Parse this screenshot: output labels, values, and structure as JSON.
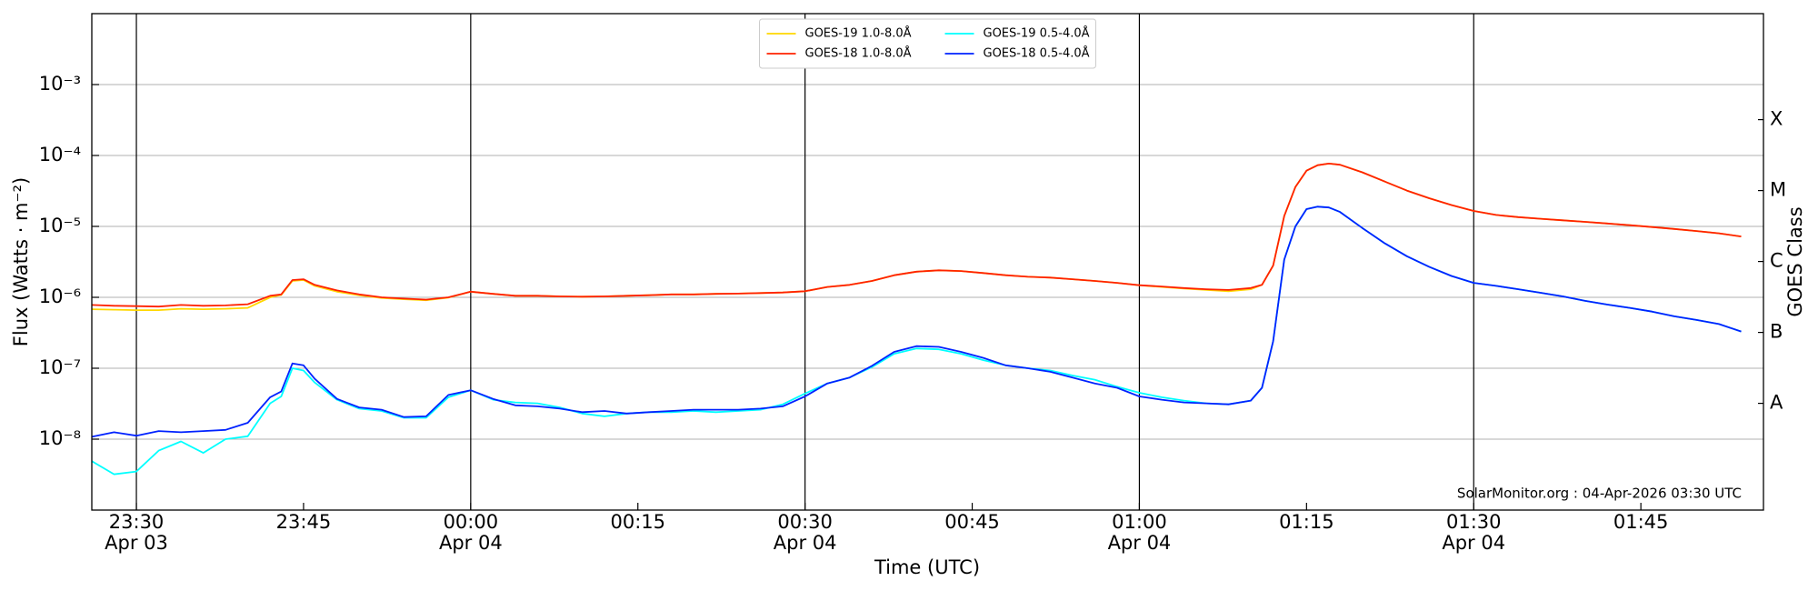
{
  "chart_data": {
    "type": "line",
    "xlabel": "Time (UTC)",
    "ylabel": "Flux (Watts · m⁻²)",
    "y2label": "GOES Class",
    "annotation": "SolarMonitor.org : 04-Apr-2026 03:30 UTC",
    "yscale": "log",
    "grid": true,
    "legend": "upper center",
    "xlim": [
      "Apr 03 23:26",
      "Apr 04 01:56"
    ],
    "xticks": [
      {
        "value": "Apr 03 23:30",
        "label": "23:30\nApr 03"
      },
      {
        "value": "Apr 03 23:45",
        "label": "23:45"
      },
      {
        "value": "Apr 04 00:00",
        "label": "00:00\nApr 04"
      },
      {
        "value": "Apr 04 00:15",
        "label": "00:15"
      },
      {
        "value": "Apr 04 00:30",
        "label": "00:30\nApr 04"
      },
      {
        "value": "Apr 04 00:45",
        "label": "00:45"
      },
      {
        "value": "Apr 04 01:00",
        "label": "01:00\nApr 04"
      },
      {
        "value": "Apr 04 01:15",
        "label": "01:15"
      },
      {
        "value": "Apr 04 01:30",
        "label": "01:30\nApr 04"
      },
      {
        "value": "Apr 04 01:45",
        "label": "01:45"
      }
    ],
    "ylim": [
      1e-09,
      0.01
    ],
    "yticks": [
      {
        "value": 1e-08,
        "label": "10⁻⁸"
      },
      {
        "value": 1e-07,
        "label": "10⁻⁷"
      },
      {
        "value": 1e-06,
        "label": "10⁻⁶"
      },
      {
        "value": 1e-05,
        "label": "10⁻⁵"
      },
      {
        "value": 0.0001,
        "label": "10⁻⁴"
      },
      {
        "value": 0.001,
        "label": "10⁻³"
      }
    ],
    "y2lim": [
      1e-09,
      0.01
    ],
    "y2ticks": [
      {
        "value": 3.2e-08,
        "label": "A"
      },
      {
        "value": 3.2e-07,
        "label": "B"
      },
      {
        "value": 3.2e-06,
        "label": "C"
      },
      {
        "value": 3.2e-05,
        "label": "M"
      },
      {
        "value": 0.00032,
        "label": "X"
      }
    ],
    "x": [
      "Apr 03 23:26",
      "Apr 03 23:28",
      "Apr 03 23:30",
      "Apr 03 23:32",
      "Apr 03 23:34",
      "Apr 03 23:36",
      "Apr 03 23:38",
      "Apr 03 23:40",
      "Apr 03 23:42",
      "Apr 03 23:43",
      "Apr 03 23:44",
      "Apr 03 23:45",
      "Apr 03 23:46",
      "Apr 03 23:48",
      "Apr 03 23:50",
      "Apr 03 23:52",
      "Apr 03 23:54",
      "Apr 03 23:56",
      "Apr 03 23:58",
      "Apr 04 00:00",
      "Apr 04 00:02",
      "Apr 04 00:04",
      "Apr 04 00:06",
      "Apr 04 00:08",
      "Apr 04 00:10",
      "Apr 04 00:12",
      "Apr 04 00:14",
      "Apr 04 00:16",
      "Apr 04 00:18",
      "Apr 04 00:20",
      "Apr 04 00:22",
      "Apr 04 00:24",
      "Apr 04 00:26",
      "Apr 04 00:28",
      "Apr 04 00:30",
      "Apr 04 00:32",
      "Apr 04 00:34",
      "Apr 04 00:36",
      "Apr 04 00:38",
      "Apr 04 00:40",
      "Apr 04 00:42",
      "Apr 04 00:44",
      "Apr 04 00:46",
      "Apr 04 00:48",
      "Apr 04 00:50",
      "Apr 04 00:52",
      "Apr 04 00:54",
      "Apr 04 00:56",
      "Apr 04 00:58",
      "Apr 04 01:00",
      "Apr 04 01:02",
      "Apr 04 01:04",
      "Apr 04 01:06",
      "Apr 04 01:08",
      "Apr 04 01:10",
      "Apr 04 01:11",
      "Apr 04 01:12",
      "Apr 04 01:13",
      "Apr 04 01:14",
      "Apr 04 01:15",
      "Apr 04 01:16",
      "Apr 04 01:17",
      "Apr 04 01:18",
      "Apr 04 01:20",
      "Apr 04 01:22",
      "Apr 04 01:24",
      "Apr 04 01:26",
      "Apr 04 01:28",
      "Apr 04 01:30",
      "Apr 04 01:32",
      "Apr 04 01:34",
      "Apr 04 01:36",
      "Apr 04 01:38",
      "Apr 04 01:40",
      "Apr 04 01:42",
      "Apr 04 01:44",
      "Apr 04 01:46",
      "Apr 04 01:48",
      "Apr 04 01:50",
      "Apr 04 01:52",
      "Apr 04 01:54"
    ],
    "series": [
      {
        "name": "GOES-19 1.0-8.0Å",
        "color": "#ffd700",
        "values": [
          6.8e-07,
          6.7e-07,
          6.6e-07,
          6.6e-07,
          6.9e-07,
          6.8e-07,
          6.9e-07,
          7.1e-07,
          1e-06,
          1.08e-06,
          1.7e-06,
          1.75e-06,
          1.45e-06,
          1.2e-06,
          1.07e-06,
          9.8e-07,
          9.4e-07,
          9.1e-07,
          9.9e-07,
          1.2e-06,
          1.12e-06,
          1.05e-06,
          1.05e-06,
          1.03e-06,
          1.02e-06,
          1.03e-06,
          1.05e-06,
          1.07e-06,
          1.1e-06,
          1.1e-06,
          1.12e-06,
          1.13e-06,
          1.15e-06,
          1.17e-06,
          1.22e-06,
          1.4e-06,
          1.5e-06,
          1.7e-06,
          2.05e-06,
          2.3e-06,
          2.4e-06,
          2.35e-06,
          2.2e-06,
          2.05e-06,
          1.95e-06,
          1.9e-06,
          1.8e-06,
          1.7e-06,
          1.6e-06,
          1.48e-06,
          1.4e-06,
          1.33e-06,
          1.27e-06,
          1.22e-06,
          1.3e-06,
          1.5e-06,
          2.8e-06,
          1.4e-05,
          3.6e-05,
          6.1e-05,
          7.3e-05,
          7.7e-05,
          7.4e-05,
          5.8e-05,
          4.3e-05,
          3.2e-05,
          2.5e-05,
          2e-05,
          1.65e-05,
          1.45e-05,
          1.35e-05,
          1.28e-05,
          1.22e-05,
          1.16e-05,
          1.1e-05,
          1.04e-05,
          9.8e-06,
          9.2e-06,
          8.6e-06,
          8e-06,
          7.2e-06
        ]
      },
      {
        "name": "GOES-18 1.0-8.0Å",
        "color": "#ff2200",
        "values": [
          7.8e-07,
          7.6e-07,
          7.5e-07,
          7.4e-07,
          7.8e-07,
          7.6e-07,
          7.7e-07,
          8e-07,
          1.05e-06,
          1.1e-06,
          1.75e-06,
          1.8e-06,
          1.5e-06,
          1.25e-06,
          1.1e-06,
          1e-06,
          9.6e-07,
          9.3e-07,
          1e-06,
          1.2e-06,
          1.12e-06,
          1.05e-06,
          1.05e-06,
          1.03e-06,
          1.02e-06,
          1.03e-06,
          1.05e-06,
          1.07e-06,
          1.1e-06,
          1.1e-06,
          1.12e-06,
          1.13e-06,
          1.15e-06,
          1.17e-06,
          1.22e-06,
          1.4e-06,
          1.5e-06,
          1.7e-06,
          2.05e-06,
          2.3e-06,
          2.4e-06,
          2.35e-06,
          2.2e-06,
          2.05e-06,
          1.95e-06,
          1.9e-06,
          1.8e-06,
          1.7e-06,
          1.6e-06,
          1.48e-06,
          1.42e-06,
          1.35e-06,
          1.3e-06,
          1.27e-06,
          1.35e-06,
          1.5e-06,
          2.8e-06,
          1.4e-05,
          3.6e-05,
          6.1e-05,
          7.3e-05,
          7.7e-05,
          7.4e-05,
          5.8e-05,
          4.3e-05,
          3.2e-05,
          2.5e-05,
          2e-05,
          1.65e-05,
          1.45e-05,
          1.35e-05,
          1.28e-05,
          1.22e-05,
          1.16e-05,
          1.1e-05,
          1.04e-05,
          9.8e-06,
          9.2e-06,
          8.6e-06,
          8e-06,
          7.2e-06
        ]
      },
      {
        "name": "GOES-19 0.5-4.0Å",
        "color": "#00ffff",
        "values": [
          4.9e-09,
          3.2e-09,
          3.5e-09,
          6.9e-09,
          9.3e-09,
          6.4e-09,
          1e-08,
          1.1e-08,
          3.2e-08,
          4e-08,
          1e-07,
          9.3e-08,
          6.3e-08,
          3.6e-08,
          2.7e-08,
          2.5e-08,
          2e-08,
          2e-08,
          3.9e-08,
          4.9e-08,
          3.6e-08,
          3.3e-08,
          3.2e-08,
          2.8e-08,
          2.3e-08,
          2.1e-08,
          2.3e-08,
          2.4e-08,
          2.4e-08,
          2.5e-08,
          2.4e-08,
          2.5e-08,
          2.6e-08,
          3.1e-08,
          4.4e-08,
          6.1e-08,
          7.4e-08,
          1.04e-07,
          1.6e-07,
          1.9e-07,
          1.85e-07,
          1.6e-07,
          1.3e-07,
          1.1e-07,
          1e-07,
          9.3e-08,
          7.9e-08,
          6.9e-08,
          5.5e-08,
          4.5e-08,
          3.9e-08,
          3.5e-08,
          3.2e-08,
          3.1e-08,
          3.5e-08,
          5.3e-08,
          2.4e-07,
          3.4e-06,
          1e-05,
          1.75e-05,
          1.9e-05,
          1.85e-05,
          1.6e-05,
          9.5e-06,
          5.8e-06,
          3.8e-06,
          2.7e-06,
          2e-06,
          1.6e-06,
          1.45e-06,
          1.3e-06,
          1.16e-06,
          1.03e-06,
          8.9e-07,
          7.9e-07,
          7.1e-07,
          6.3e-07,
          5.4e-07,
          4.8e-07,
          4.2e-07,
          3.3e-07
        ]
      },
      {
        "name": "GOES-18 0.5-4.0Å",
        "color": "#0022ff",
        "values": [
          1.08e-08,
          1.25e-08,
          1.12e-08,
          1.3e-08,
          1.25e-08,
          1.3e-08,
          1.35e-08,
          1.7e-08,
          3.9e-08,
          4.7e-08,
          1.17e-07,
          1.1e-07,
          7.1e-08,
          3.7e-08,
          2.8e-08,
          2.6e-08,
          2.05e-08,
          2.1e-08,
          4.2e-08,
          4.9e-08,
          3.7e-08,
          3e-08,
          2.9e-08,
          2.7e-08,
          2.4e-08,
          2.5e-08,
          2.3e-08,
          2.4e-08,
          2.5e-08,
          2.6e-08,
          2.6e-08,
          2.6e-08,
          2.7e-08,
          2.9e-08,
          4e-08,
          6.1e-08,
          7.4e-08,
          1.08e-07,
          1.7e-07,
          2.05e-07,
          2e-07,
          1.7e-07,
          1.4e-07,
          1.1e-07,
          1e-07,
          8.9e-08,
          7.4e-08,
          6.1e-08,
          5.3e-08,
          4e-08,
          3.6e-08,
          3.3e-08,
          3.2e-08,
          3.1e-08,
          3.5e-08,
          5.3e-08,
          2.4e-07,
          3.4e-06,
          1e-05,
          1.75e-05,
          1.9e-05,
          1.85e-05,
          1.6e-05,
          9.5e-06,
          5.8e-06,
          3.8e-06,
          2.7e-06,
          2e-06,
          1.6e-06,
          1.45e-06,
          1.3e-06,
          1.16e-06,
          1.03e-06,
          8.9e-07,
          7.9e-07,
          7.1e-07,
          6.3e-07,
          5.4e-07,
          4.8e-07,
          4.2e-07,
          3.3e-07
        ]
      }
    ]
  }
}
